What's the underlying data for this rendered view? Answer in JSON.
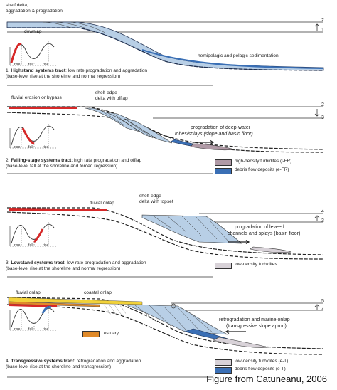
{
  "panel1": {
    "top_label_1": "shelf delta,",
    "top_label_2": "aggradation & progradation",
    "downlap": "downlap",
    "hemipelagic": "hemipelagic and pelagic sedimentation",
    "curve_rise1": "rise",
    "curve_fall": "fall",
    "curve_rise2": "rise",
    "num_top": "2",
    "num_bottom": "1",
    "caption_num": "1.",
    "caption_title": "Highstand systems tract",
    "caption_rest": ": low rate progradation and aggradation",
    "caption_line2": "(base-level rise at the shoreline and normal regression)"
  },
  "panel2": {
    "fluvial": "fluvial erosion or bypass",
    "shelf_edge_1": "shelf-edge",
    "shelf_edge_2": "delta with offlap",
    "prog_1": "progradation of deep-water",
    "prog_2": "lobes/splays (slope and basin floor)",
    "curve_rise1": "rise",
    "curve_fall": "fall",
    "curve_rise2": "rise",
    "num_top": "2",
    "num_bottom": "3",
    "legend_1": "high-density turbidites (l-FR)",
    "legend_2": "debris flow deposits (e-FR)",
    "caption_num": "2.",
    "caption_title": "Falling-stage systems tract",
    "caption_rest": ": high rate progradation and offlap",
    "caption_line2": "(base-level fall at the shoreline and forced regression)"
  },
  "panel3": {
    "fluvial_onlap": "fluvial onlap",
    "shelf_edge_1": "shelf-edge",
    "shelf_edge_2": "delta with topset",
    "prog_1": "progradation of leveed",
    "prog_2": "channels and splays (basin floor)",
    "curve_rise1": "rise",
    "curve_fall": "fall",
    "curve_rise2": "rise",
    "num_top": "4",
    "num_bottom": "3",
    "legend_1": "low-density turbidites",
    "caption_num": "3.",
    "caption_title": "Lowstand systems tract",
    "caption_rest": ": low rate progradation and aggradation",
    "caption_line2": "(base-level rise at the shoreline and normal regression)"
  },
  "panel4": {
    "fluvial_onlap": "fluvial onlap",
    "coastal_onlap": "coastal onlap",
    "retro_1": "retrogradation and marine onlap",
    "retro_2": "(transgressive slope apron)",
    "estuary": "estuary",
    "curve_rise1": "rise",
    "curve_fall": "fall",
    "curve_rise2": "rise",
    "num_top": "5",
    "num_bottom": "4",
    "legend_1": "low-density turbidites (e-T)",
    "legend_2": "debris flow deposits (e-T)",
    "caption_num": "4.",
    "caption_title": "Transgressive systems tract",
    "caption_rest": ": retrogradation and aggradation",
    "caption_line2": "(base-level rise at the shoreline and transgression)"
  },
  "credit": "Figure from Catuneanu, 2006",
  "colors": {
    "red": "#d62828",
    "blue": "#3a6fb5",
    "light_blue": "#b8cfe6",
    "mauve": "#b09aa6",
    "orange": "#e08a2a",
    "yellow": "#f2d23a"
  }
}
